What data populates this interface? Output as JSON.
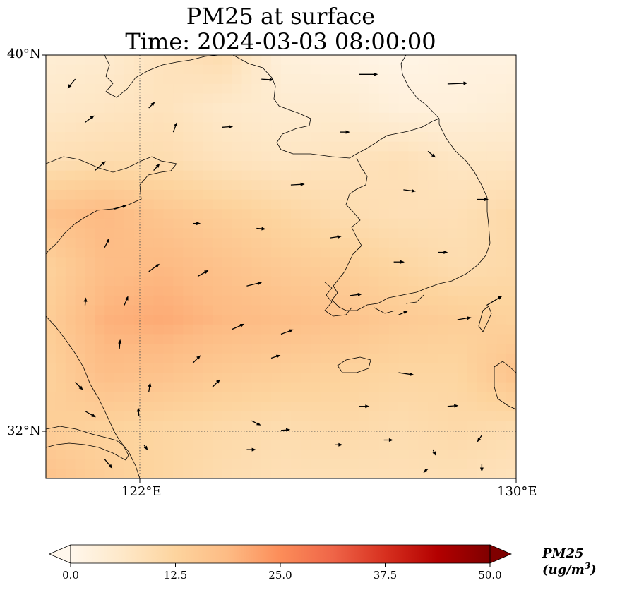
{
  "title": {
    "line1": "PM25 at surface",
    "line2": "Time: 2024-03-03 08:00:00"
  },
  "map": {
    "extent": {
      "lon_min": 120.4,
      "lon_max": 130.0,
      "lat_min": 31.2,
      "lat_max": 40.0
    },
    "gridlines": {
      "style": "dotted",
      "lon": [
        122
      ],
      "lat": [
        32
      ]
    },
    "lat_ticks": [
      {
        "value": 40,
        "label": "40°N"
      },
      {
        "value": 32,
        "label": "32°N"
      }
    ],
    "lon_ticks": [
      {
        "value": 122,
        "label": "122°E"
      },
      {
        "value": 130,
        "label": "130°E"
      }
    ]
  },
  "colorbar": {
    "cmap": "OrRd",
    "colors": [
      "#fff7ec",
      "#fee8c8",
      "#fdd49e",
      "#fdbb84",
      "#fc8d59",
      "#ef6548",
      "#d7301f",
      "#b30000",
      "#7f0000"
    ],
    "min": 0.0,
    "max": 50.0,
    "extend": "both",
    "ticks": [
      "0.0",
      "12.5",
      "25.0",
      "37.5",
      "50.0"
    ],
    "label": "PM25 (ug/m",
    "label_sup": "3",
    "label_close": ")"
  },
  "chart_data": {
    "type": "heatmap",
    "variable": "PM25",
    "units": "ug/m3",
    "lon": [
      120.4,
      121.6,
      122.8,
      124.0,
      125.2,
      126.4,
      127.6,
      128.8,
      130.0
    ],
    "lat": [
      40.0,
      38.9,
      37.8,
      36.7,
      35.6,
      34.5,
      33.4,
      32.3,
      31.2
    ],
    "values": [
      [
        4,
        5,
        8,
        10,
        3,
        2,
        1,
        2,
        2
      ],
      [
        6,
        7,
        8,
        6,
        5,
        5,
        3,
        3,
        4
      ],
      [
        9,
        10,
        10,
        8,
        7,
        8,
        9,
        7,
        7
      ],
      [
        17,
        19,
        16,
        14,
        12,
        10,
        9,
        9,
        11
      ],
      [
        13,
        18,
        19,
        17,
        15,
        14,
        12,
        10,
        11
      ],
      [
        14,
        20,
        21,
        19,
        18,
        17,
        15,
        14,
        13
      ],
      [
        13,
        18,
        17,
        15,
        14,
        13,
        12,
        12,
        17
      ],
      [
        14,
        13,
        12,
        11,
        10,
        11,
        10,
        11,
        10
      ],
      [
        17,
        14,
        12,
        10,
        9,
        9,
        9,
        9,
        8
      ]
    ],
    "wind_vectors": [
      {
        "lon": 121.0,
        "lat": 39.5,
        "u": -1.0,
        "v": -1.2
      },
      {
        "lon": 122.5,
        "lat": 38.9,
        "u": 0.8,
        "v": 0.8
      },
      {
        "lon": 124.8,
        "lat": 39.5,
        "u": 1.6,
        "v": -0.1
      },
      {
        "lon": 126.8,
        "lat": 39.6,
        "u": 2.4,
        "v": 0.0
      },
      {
        "lon": 128.6,
        "lat": 39.4,
        "u": 2.6,
        "v": 0.1
      },
      {
        "lon": 121.2,
        "lat": 38.6,
        "u": 1.2,
        "v": 0.9
      },
      {
        "lon": 123.0,
        "lat": 38.4,
        "u": 0.5,
        "v": 1.3
      },
      {
        "lon": 124.0,
        "lat": 38.5,
        "u": 1.4,
        "v": 0.1
      },
      {
        "lon": 126.4,
        "lat": 38.4,
        "u": 1.3,
        "v": 0.0
      },
      {
        "lon": 128.2,
        "lat": 38.0,
        "u": 1.0,
        "v": -0.8
      },
      {
        "lon": 121.4,
        "lat": 37.6,
        "u": 1.4,
        "v": 1.2
      },
      {
        "lon": 122.6,
        "lat": 37.6,
        "u": 0.8,
        "v": 0.9
      },
      {
        "lon": 125.4,
        "lat": 37.3,
        "u": 1.8,
        "v": 0.1
      },
      {
        "lon": 127.7,
        "lat": 37.2,
        "u": 1.6,
        "v": -0.2
      },
      {
        "lon": 129.2,
        "lat": 37.0,
        "u": 1.5,
        "v": 0.0
      },
      {
        "lon": 121.8,
        "lat": 36.8,
        "u": 1.6,
        "v": 0.5
      },
      {
        "lon": 123.4,
        "lat": 36.5,
        "u": 1.0,
        "v": 0.0
      },
      {
        "lon": 124.7,
        "lat": 36.4,
        "u": 1.2,
        "v": -0.1
      },
      {
        "lon": 126.2,
        "lat": 36.2,
        "u": 1.5,
        "v": 0.2
      },
      {
        "lon": 127.5,
        "lat": 35.7,
        "u": 1.4,
        "v": 0.0
      },
      {
        "lon": 128.4,
        "lat": 35.9,
        "u": 1.3,
        "v": 0.0
      },
      {
        "lon": 121.6,
        "lat": 36.0,
        "u": 0.6,
        "v": 1.2
      },
      {
        "lon": 122.5,
        "lat": 35.5,
        "u": 1.4,
        "v": 1.0
      },
      {
        "lon": 123.5,
        "lat": 35.4,
        "u": 1.4,
        "v": 0.8
      },
      {
        "lon": 124.5,
        "lat": 35.2,
        "u": 2.0,
        "v": 0.5
      },
      {
        "lon": 126.6,
        "lat": 35.0,
        "u": 1.6,
        "v": 0.2
      },
      {
        "lon": 127.6,
        "lat": 34.6,
        "u": 1.2,
        "v": 0.5
      },
      {
        "lon": 129.4,
        "lat": 34.8,
        "u": 2.0,
        "v": 1.2
      },
      {
        "lon": 121.2,
        "lat": 34.8,
        "u": 0.1,
        "v": 1.0
      },
      {
        "lon": 122.0,
        "lat": 34.8,
        "u": 0.5,
        "v": 1.2
      },
      {
        "lon": 124.2,
        "lat": 34.3,
        "u": 1.6,
        "v": 0.7
      },
      {
        "lon": 125.2,
        "lat": 34.2,
        "u": 1.6,
        "v": 0.6
      },
      {
        "lon": 128.8,
        "lat": 34.5,
        "u": 1.8,
        "v": 0.3
      },
      {
        "lon": 121.9,
        "lat": 33.9,
        "u": 0.1,
        "v": 1.2
      },
      {
        "lon": 123.4,
        "lat": 33.6,
        "u": 1.0,
        "v": 1.0
      },
      {
        "lon": 125.0,
        "lat": 33.7,
        "u": 1.2,
        "v": 0.4
      },
      {
        "lon": 127.6,
        "lat": 33.4,
        "u": 2.0,
        "v": -0.3
      },
      {
        "lon": 121.0,
        "lat": 33.2,
        "u": 1.0,
        "v": -1.0
      },
      {
        "lon": 122.5,
        "lat": 33.0,
        "u": 0.2,
        "v": 1.2
      },
      {
        "lon": 123.8,
        "lat": 33.1,
        "u": 1.0,
        "v": 1.0
      },
      {
        "lon": 126.8,
        "lat": 32.7,
        "u": 1.3,
        "v": 0.0
      },
      {
        "lon": 128.6,
        "lat": 32.7,
        "u": 1.4,
        "v": 0.1
      },
      {
        "lon": 121.2,
        "lat": 32.6,
        "u": 1.4,
        "v": -0.8
      },
      {
        "lon": 122.3,
        "lat": 32.5,
        "u": -0.1,
        "v": 1.1
      },
      {
        "lon": 124.6,
        "lat": 32.4,
        "u": 1.2,
        "v": -0.6
      },
      {
        "lon": 125.2,
        "lat": 32.2,
        "u": 1.2,
        "v": 0.1
      },
      {
        "lon": 127.3,
        "lat": 32.0,
        "u": 1.2,
        "v": 0.0
      },
      {
        "lon": 129.3,
        "lat": 32.1,
        "u": -0.6,
        "v": -0.9
      },
      {
        "lon": 122.4,
        "lat": 31.9,
        "u": 0.5,
        "v": -0.7
      },
      {
        "lon": 124.5,
        "lat": 31.8,
        "u": 1.2,
        "v": 0.0
      },
      {
        "lon": 126.3,
        "lat": 31.9,
        "u": 1.0,
        "v": 0.0
      },
      {
        "lon": 128.3,
        "lat": 31.8,
        "u": 0.4,
        "v": -0.8
      },
      {
        "lon": 121.6,
        "lat": 31.6,
        "u": 1.0,
        "v": -1.2
      },
      {
        "lon": 128.2,
        "lat": 31.4,
        "u": -0.6,
        "v": -0.5
      },
      {
        "lon": 129.3,
        "lat": 31.5,
        "u": 0.0,
        "v": -1.0
      }
    ]
  }
}
